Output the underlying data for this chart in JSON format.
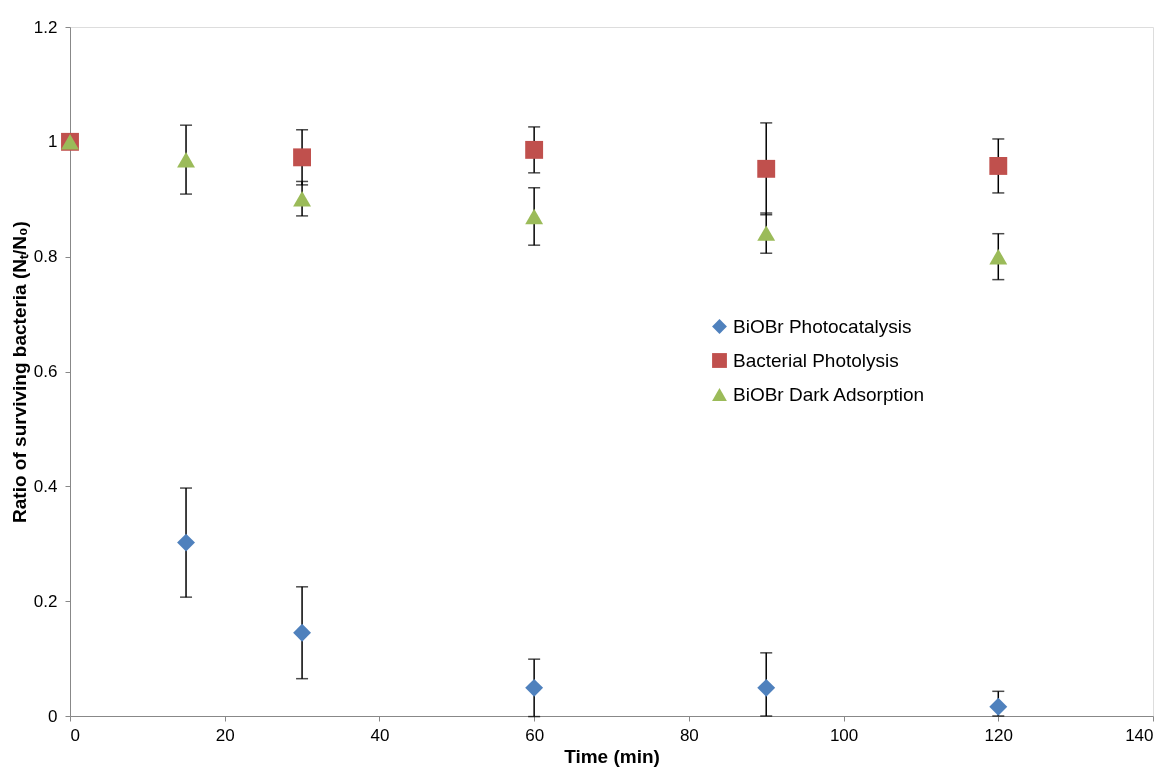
{
  "chart_data": {
    "type": "scatter",
    "xlabel": "Time (min)",
    "ylabel": "Ratio of surviving  bacteria (Nₜ/N₀)",
    "x": [
      0,
      15,
      30,
      60,
      90,
      120
    ],
    "xlim": [
      0,
      140
    ],
    "xticks": [
      0,
      20,
      40,
      60,
      80,
      100,
      120,
      140
    ],
    "ylim": [
      0,
      1.2
    ],
    "yticks": [
      0,
      0.2,
      0.4,
      0.6,
      0.8,
      1,
      1.2
    ],
    "grid": false,
    "legend": "right",
    "series": [
      {
        "name": "BiOBr Photocatalysis",
        "color": "#4f81bd",
        "marker": "diamond",
        "values": [
          null,
          0.302,
          0.145,
          0.049,
          0.049,
          0.016
        ],
        "errors": [
          null,
          0.095,
          0.08,
          0.05,
          [
            0,
            0.11
          ],
          [
            0,
            0.043
          ]
        ]
      },
      {
        "name": "Bacterial Photolysis",
        "color": "#c0504d",
        "marker": "square",
        "values": [
          1.0,
          null,
          0.973,
          0.986,
          0.953,
          0.958
        ],
        "errors": [
          null,
          null,
          0.048,
          0.04,
          0.08,
          0.047
        ]
      },
      {
        "name": "BiOBr Dark Adsorption",
        "color": "#9bbb59",
        "marker": "triangle",
        "values": [
          1.0,
          0.969,
          0.901,
          0.87,
          0.841,
          0.8
        ],
        "errors": [
          null,
          0.06,
          0.03,
          0.05,
          0.035,
          0.04
        ]
      }
    ]
  }
}
